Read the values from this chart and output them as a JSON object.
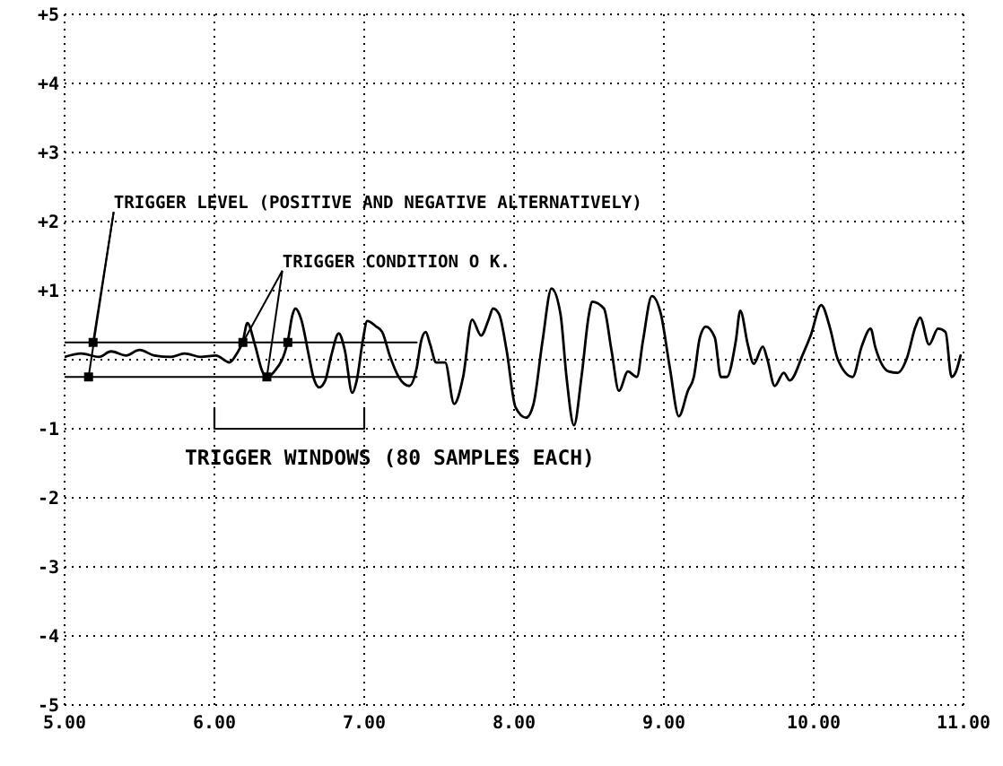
{
  "chart_data": {
    "type": "line",
    "line_style": "solid",
    "marker": "none",
    "grid": true,
    "xlim": [
      5,
      11
    ],
    "xticks": [
      {
        "value": 5,
        "label": "5.00"
      },
      {
        "value": 6,
        "label": "6.00"
      },
      {
        "value": 7,
        "label": "7.00"
      },
      {
        "value": 8,
        "label": "8.00"
      },
      {
        "value": 9,
        "label": "9.00"
      },
      {
        "value": 10,
        "label": "10.00"
      },
      {
        "value": 11,
        "label": "11.00"
      }
    ],
    "ylim": [
      -5,
      5
    ],
    "yticks": [
      -5,
      -4,
      -3,
      -2,
      -1,
      {
        "value": 0,
        "label": null
      },
      {
        "value": 1,
        "label": "+1"
      },
      {
        "value": 2,
        "label": "+2"
      },
      {
        "value": 3,
        "label": "+3"
      },
      {
        "value": 4,
        "label": "+4"
      },
      {
        "value": 5,
        "label": "+5"
      }
    ],
    "series": [
      {
        "color": "#000000",
        "x": [
          5.0,
          5.11,
          5.23,
          5.31,
          5.41,
          5.5,
          5.6,
          5.71,
          5.8,
          5.91,
          6.01,
          6.1,
          6.15,
          6.19,
          6.22,
          6.27,
          6.32,
          6.35,
          6.4,
          6.49,
          6.52,
          6.54,
          6.58,
          6.63,
          6.66,
          6.7,
          6.74,
          6.78,
          6.83,
          6.87,
          6.92,
          6.95,
          6.99,
          7.02,
          7.08,
          7.12,
          7.17,
          7.23,
          7.3,
          7.35,
          7.38,
          7.41,
          7.44,
          7.48,
          7.54,
          7.6,
          7.66,
          7.72,
          7.78,
          7.83,
          7.86,
          7.9,
          7.95,
          8.01,
          8.08,
          8.13,
          8.19,
          8.25,
          8.31,
          8.35,
          8.4,
          8.45,
          8.5,
          8.52,
          8.6,
          8.65,
          8.7,
          8.76,
          8.82,
          8.86,
          8.92,
          8.98,
          9.04,
          9.1,
          9.16,
          9.2,
          9.24,
          9.28,
          9.34,
          9.38,
          9.42,
          9.48,
          9.51,
          9.56,
          9.6,
          9.66,
          9.69,
          9.74,
          9.8,
          9.84,
          9.93,
          9.98,
          10.05,
          10.11,
          10.16,
          10.26,
          10.32,
          10.38,
          10.41,
          10.5,
          10.56,
          10.62,
          10.68,
          10.71,
          10.77,
          10.83,
          10.88,
          10.92,
          10.95,
          10.98
        ],
        "values": [
          0.04,
          0.09,
          0.04,
          0.12,
          0.06,
          0.14,
          0.06,
          0.04,
          0.09,
          0.04,
          0.06,
          -0.04,
          0.09,
          0.27,
          0.53,
          0.22,
          -0.17,
          -0.25,
          -0.17,
          0.27,
          0.64,
          0.74,
          0.58,
          0.06,
          -0.25,
          -0.4,
          -0.3,
          0.06,
          0.38,
          0.14,
          -0.48,
          -0.3,
          0.27,
          0.56,
          0.48,
          0.4,
          0.06,
          -0.25,
          -0.38,
          -0.12,
          0.27,
          0.4,
          0.22,
          -0.04,
          -0.04,
          -0.64,
          -0.25,
          0.58,
          0.35,
          0.58,
          0.74,
          0.66,
          0.14,
          -0.69,
          -0.84,
          -0.64,
          0.27,
          1.03,
          0.66,
          -0.25,
          -0.95,
          -0.25,
          0.66,
          0.84,
          0.74,
          0.14,
          -0.45,
          -0.17,
          -0.25,
          0.27,
          0.92,
          0.66,
          -0.12,
          -0.82,
          -0.45,
          -0.25,
          0.32,
          0.48,
          0.32,
          -0.25,
          -0.25,
          0.27,
          0.71,
          0.22,
          -0.06,
          0.19,
          0.01,
          -0.38,
          -0.19,
          -0.3,
          0.09,
          0.35,
          0.79,
          0.45,
          0.01,
          -0.25,
          0.19,
          0.45,
          0.19,
          -0.17,
          -0.19,
          0.01,
          0.48,
          0.61,
          0.22,
          0.45,
          0.4,
          -0.25,
          -0.17,
          0.06
        ]
      },
      {
        "color": "#000000",
        "x": [
          5,
          7.35
        ],
        "values": [
          0.25,
          0.25
        ]
      },
      {
        "color": "#000000",
        "x": [
          5,
          7.35
        ],
        "values": [
          -0.25,
          -0.25
        ]
      },
      {
        "type": "scatter",
        "marker": "square",
        "color": "#000000",
        "x": [
          5.16,
          5.19,
          6.19,
          6.35,
          6.49
        ],
        "values": [
          -0.25,
          0.25,
          0.25,
          -0.25,
          0.25
        ]
      },
      {
        "color": "#000000",
        "x": [
          6,
          6,
          7,
          7
        ],
        "values": [
          -0.7,
          -1,
          -1,
          -0.7
        ]
      }
    ],
    "annotations": [
      {
        "text": "TRIGGER LEVEL (POSITIVE AND NEGATIVE ALTERNATIVELY)",
        "x": 5.16,
        "y": -0.25
      },
      {
        "text": "TRIGGER CONDITION O K.",
        "x": 6.19,
        "y": 0.25
      },
      "TRIGGER WINDOWS (80 SAMPLES EACH)"
    ]
  }
}
